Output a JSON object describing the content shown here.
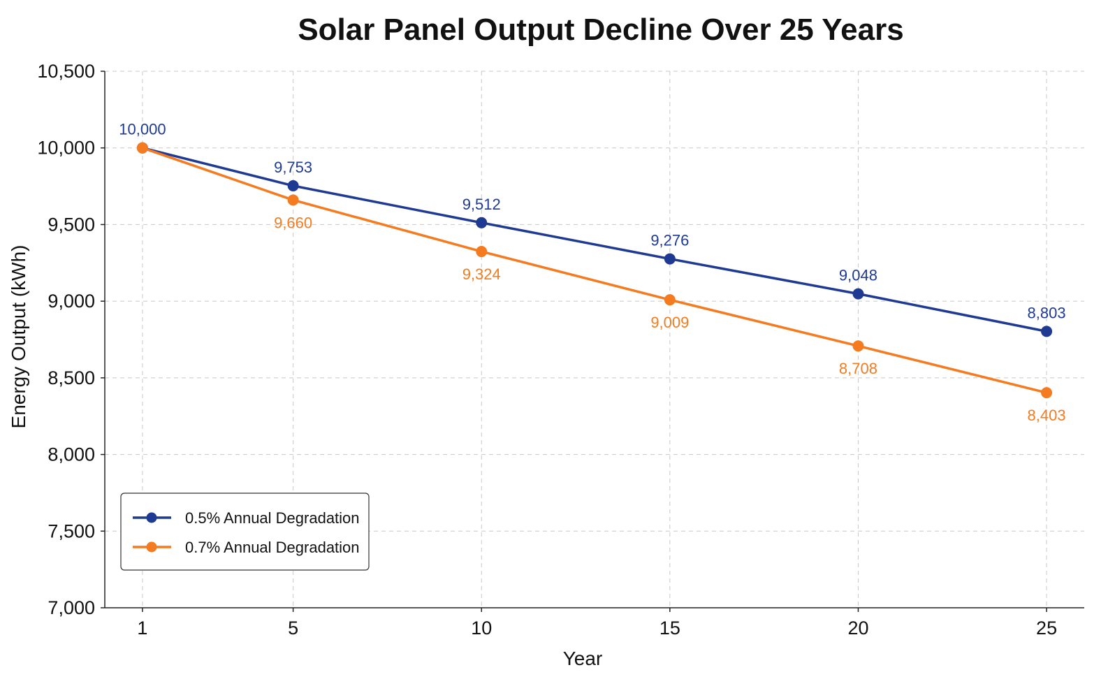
{
  "chart_data": {
    "type": "line",
    "title": "Solar Panel Output Decline Over 25 Years",
    "xlabel": "Year",
    "ylabel": "Energy Output (kWh)",
    "x": [
      1,
      5,
      10,
      15,
      20,
      25
    ],
    "x_ticks": [
      "1",
      "5",
      "10",
      "15",
      "20",
      "25"
    ],
    "xlim": [
      0,
      26
    ],
    "ylim": [
      7000,
      10500
    ],
    "y_ticks": [
      7000,
      7500,
      8000,
      8500,
      9000,
      9500,
      10000,
      10500
    ],
    "y_tick_labels": [
      "7,000",
      "7,500",
      "8,000",
      "8,500",
      "9,000",
      "9,500",
      "10,000",
      "10,500"
    ],
    "grid": true,
    "legend_position": "bottom-left",
    "series": [
      {
        "name": "0.5% Annual Degradation",
        "color": "#1f3a93",
        "values": [
          10000,
          9753,
          9512,
          9276,
          9048,
          8803
        ],
        "labels": [
          "10,000",
          "9,753",
          "9,512",
          "9,276",
          "9,048",
          "8,803"
        ],
        "label_position": "above"
      },
      {
        "name": "0.7% Annual Degradation",
        "color": "#f47b20",
        "values": [
          10000,
          9660,
          9324,
          9009,
          8708,
          8403
        ],
        "labels": [
          "",
          "9,660",
          "9,324",
          "9,009",
          "8,708",
          "8,403"
        ],
        "label_position": "below"
      }
    ]
  }
}
